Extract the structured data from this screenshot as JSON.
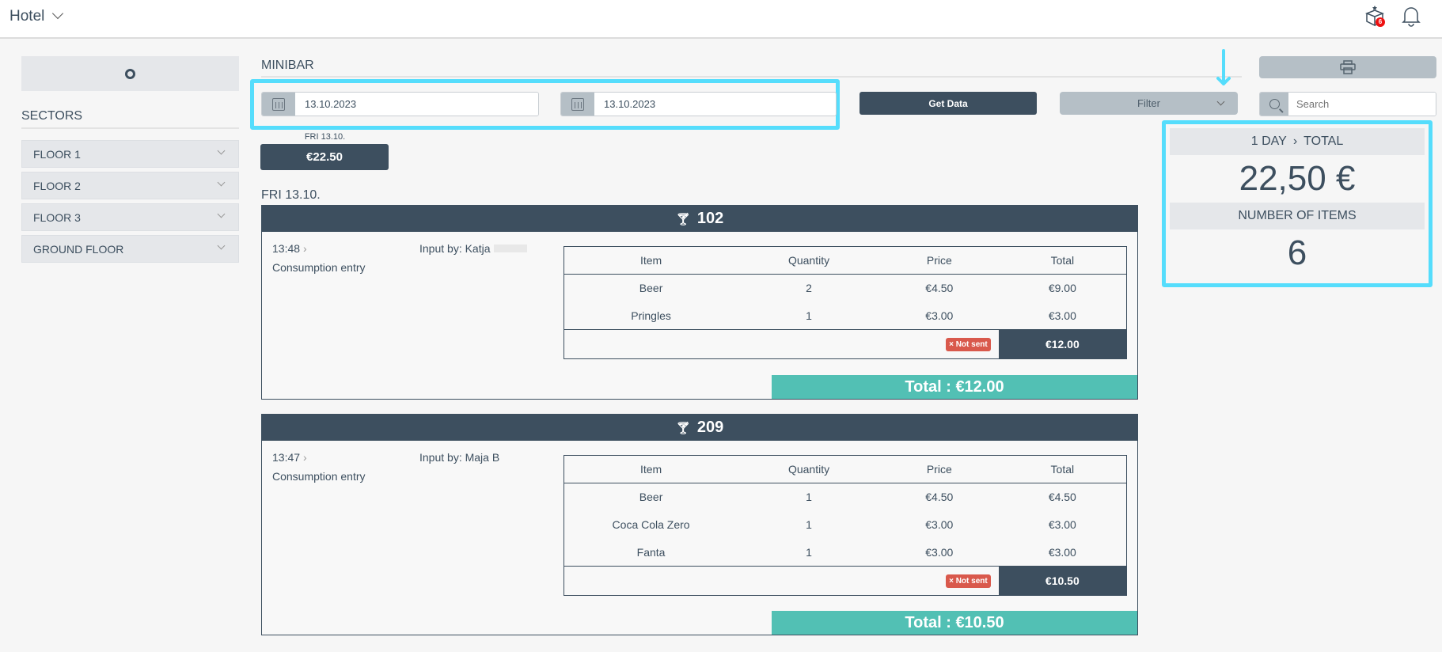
{
  "header": {
    "title": "Hotel",
    "gift_badge": "6",
    "gift_icon": "gift-box-icon",
    "bell_icon": "bell-icon"
  },
  "sidebar": {
    "title": "SECTORS",
    "items": [
      {
        "label": "FLOOR 1"
      },
      {
        "label": "FLOOR 2"
      },
      {
        "label": "FLOOR 3"
      },
      {
        "label": "GROUND FLOOR"
      }
    ]
  },
  "main": {
    "title": "MINIBAR",
    "date_from": "13.10.2023",
    "date_to": "13.10.2023",
    "get_data": "Get Data",
    "filter": "Filter",
    "search_placeholder": "Search",
    "day_chip": {
      "label": "FRI 13.10.",
      "amount": "€22.50"
    },
    "day_heading": "FRI 13.10.",
    "columns": [
      "Item",
      "Quantity",
      "Price",
      "Total"
    ],
    "cards": [
      {
        "room": "102",
        "time": "13:48",
        "type": "Consumption entry",
        "input_by": "Input by: Katja",
        "rows": [
          [
            "Beer",
            "2",
            "€4.50",
            "€9.00"
          ],
          [
            "Pringles",
            "1",
            "€3.00",
            "€3.00"
          ]
        ],
        "status": "Not sent",
        "subtotal": "€12.00",
        "total": "Total : €12.00"
      },
      {
        "room": "209",
        "time": "13:47",
        "type": "Consumption entry",
        "input_by": "Input by: Maja B",
        "rows": [
          [
            "Beer",
            "1",
            "€4.50",
            "€4.50"
          ],
          [
            "Coca Cola Zero",
            "1",
            "€3.00",
            "€3.00"
          ],
          [
            "Fanta",
            "1",
            "€3.00",
            "€3.00"
          ]
        ],
        "status": "Not sent",
        "subtotal": "€10.50",
        "total": "Total : €10.50"
      }
    ]
  },
  "stats": {
    "period": "1 DAY",
    "period_sep": "›",
    "scope": "TOTAL",
    "total": "22,50 €",
    "items_label": "NUMBER OF ITEMS",
    "items": "6"
  },
  "colors": {
    "primary": "#3d4f5f",
    "accent": "#52c0b4",
    "highlight": "#55ddfc",
    "danger": "#d9594c"
  }
}
